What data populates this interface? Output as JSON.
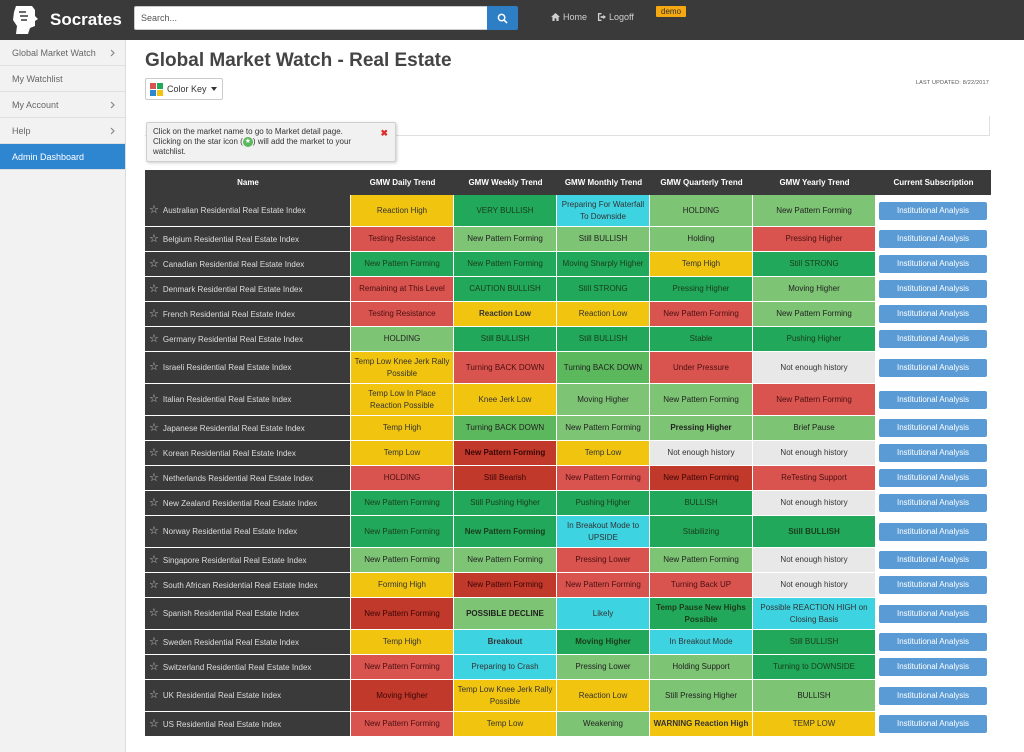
{
  "app": {
    "name": "Socrates"
  },
  "search": {
    "placeholder": "Search..."
  },
  "nav": {
    "home": "Home",
    "logoff": "Logoff",
    "badge": "demo"
  },
  "sidebar": {
    "items": [
      {
        "label": "Global Market Watch",
        "chevron": true
      },
      {
        "label": "My Watchlist",
        "chevron": false
      },
      {
        "label": "My Account",
        "chevron": true
      },
      {
        "label": "Help",
        "chevron": true
      },
      {
        "label": "Admin Dashboard",
        "chevron": false,
        "active": true
      }
    ]
  },
  "page": {
    "title": "Global Market Watch - Real Estate",
    "color_key": "Color Key",
    "last_updated": "LAST UPDATED: 8/22/2017",
    "tip_line1": "Click on the market name to go to Market detail page.",
    "tip_line2a": "Clicking on the star icon (",
    "tip_line2b": ") will add the market to your watchlist."
  },
  "table": {
    "headers": [
      "Name",
      "GMW Daily Trend",
      "GMW Weekly Trend",
      "GMW Monthly Trend",
      "GMW Quarterly Trend",
      "GMW Yearly Trend",
      "Current Subscription"
    ],
    "subscription_label": "Institutional Analysis",
    "rows": [
      {
        "name": "Australian Residential Real Estate Index",
        "cells": [
          [
            "Reaction High",
            "yellow"
          ],
          [
            "VERY BULLISH",
            "dgreen"
          ],
          [
            "Preparing For Waterfall To Downside",
            "cyan"
          ],
          [
            "HOLDING",
            "lgreen"
          ],
          [
            "New Pattern Forming",
            "lgreen"
          ]
        ]
      },
      {
        "name": "Belgium Residential Real Estate Index",
        "cells": [
          [
            "Testing Resistance",
            "red"
          ],
          [
            "New Pattern Forming",
            "lgreen"
          ],
          [
            "Still BULLISH",
            "lgreen"
          ],
          [
            "Holding",
            "lgreen"
          ],
          [
            "Pressing Higher",
            "red"
          ]
        ]
      },
      {
        "name": "Canadian Residential Real Estate Index",
        "cells": [
          [
            "New Pattern Forming",
            "dgreen"
          ],
          [
            "New Pattern Forming",
            "dgreen"
          ],
          [
            "Moving Sharply Higher",
            "dgreen"
          ],
          [
            "Temp High",
            "yellow"
          ],
          [
            "Still STRONG",
            "dgreen"
          ]
        ]
      },
      {
        "name": "Denmark Residential Real Estate Index",
        "cells": [
          [
            "Remaining at This Level",
            "red"
          ],
          [
            "CAUTION BULLISH",
            "dgreen"
          ],
          [
            "Still STRONG",
            "dgreen"
          ],
          [
            "Pressing Higher",
            "dgreen"
          ],
          [
            "Moving Higher",
            "lgreen"
          ]
        ]
      },
      {
        "name": "French Residential Real Estate Index",
        "cells": [
          [
            "Testing Resistance",
            "red"
          ],
          [
            "Reaction Low",
            "yellow",
            "b"
          ],
          [
            "Reaction Low",
            "yellow"
          ],
          [
            "New Pattern Forming",
            "red"
          ],
          [
            "New Pattern Forming",
            "lgreen"
          ]
        ]
      },
      {
        "name": "Germany Residential Real Estate Index",
        "cells": [
          [
            "HOLDING",
            "lgreen"
          ],
          [
            "Still BULLISH",
            "dgreen"
          ],
          [
            "Still BULLISH",
            "dgreen"
          ],
          [
            "Stable",
            "dgreen"
          ],
          [
            "Pushing Higher",
            "dgreen"
          ]
        ]
      },
      {
        "name": "Israeli Residential Real Estate Index",
        "cells": [
          [
            "Temp Low Knee Jerk Rally Possible",
            "yellow"
          ],
          [
            "Turning BACK DOWN",
            "red"
          ],
          [
            "Turning BACK DOWN",
            "mgreen"
          ],
          [
            "Under Pressure",
            "red"
          ],
          [
            "Not enough history",
            "grey"
          ]
        ]
      },
      {
        "name": "Italian Residential Real Estate Index",
        "cells": [
          [
            "Temp Low In Place Reaction Possible",
            "yellow"
          ],
          [
            "Knee Jerk Low",
            "yellow"
          ],
          [
            "Moving Higher",
            "lgreen"
          ],
          [
            "New Pattern Forming",
            "lgreen"
          ],
          [
            "New Pattern Forming",
            "red"
          ]
        ]
      },
      {
        "name": "Japanese Residential Real Estate Index",
        "cells": [
          [
            "Temp High",
            "yellow"
          ],
          [
            "Turning BACK DOWN",
            "mgreen"
          ],
          [
            "New Pattern Forming",
            "lgreen"
          ],
          [
            "Pressing Higher",
            "lgreen",
            "b"
          ],
          [
            "Brief Pause",
            "lgreen"
          ]
        ]
      },
      {
        "name": "Korean Residential Real Estate Index",
        "cells": [
          [
            "Temp Low",
            "yellow"
          ],
          [
            "New Pattern Forming",
            "dred",
            "b"
          ],
          [
            "Temp Low",
            "yellow"
          ],
          [
            "Not enough history",
            "grey"
          ],
          [
            "Not enough history",
            "grey"
          ]
        ]
      },
      {
        "name": "Netherlands Residential Real Estate Index",
        "cells": [
          [
            "HOLDING",
            "red"
          ],
          [
            "Still Bearish",
            "dred"
          ],
          [
            "New Pattern Forming",
            "red"
          ],
          [
            "New Pattern Forming",
            "dred"
          ],
          [
            "ReTesting Support",
            "red"
          ]
        ]
      },
      {
        "name": "New Zealand Residential Real Estate Index",
        "cells": [
          [
            "New Pattern Forming",
            "dgreen"
          ],
          [
            "Still Pushing Higher",
            "dgreen"
          ],
          [
            "Pushing Higher",
            "dgreen"
          ],
          [
            "BULLISH",
            "dgreen"
          ],
          [
            "Not enough history",
            "grey"
          ]
        ]
      },
      {
        "name": "Norway Residential Real Estate Index",
        "cells": [
          [
            "New Pattern Forming",
            "dgreen"
          ],
          [
            "New Pattern Forming",
            "dgreen",
            "b"
          ],
          [
            "In Breakout Mode to UPSIDE",
            "cyan"
          ],
          [
            "Stabilizing",
            "dgreen"
          ],
          [
            "Still BULLISH",
            "dgreen",
            "b"
          ]
        ]
      },
      {
        "name": "Singapore Residential Real Estate Index",
        "cells": [
          [
            "New Pattern Forming",
            "lgreen"
          ],
          [
            "New Pattern Forming",
            "lgreen"
          ],
          [
            "Pressing Lower",
            "red"
          ],
          [
            "New Pattern Forming",
            "lgreen"
          ],
          [
            "Not enough history",
            "grey"
          ]
        ]
      },
      {
        "name": "South African Residential Real Estate Index",
        "cells": [
          [
            "Forming High",
            "yellow"
          ],
          [
            "New Pattern Forming",
            "dred"
          ],
          [
            "New Pattern Forming",
            "red"
          ],
          [
            "Turning Back UP",
            "red"
          ],
          [
            "Not enough history",
            "grey"
          ]
        ]
      },
      {
        "name": "Spanish Residential Real Estate Index",
        "cells": [
          [
            "New Pattern Forming",
            "dred"
          ],
          [
            "POSSIBLE DECLINE",
            "lgreen",
            "b"
          ],
          [
            "Likely",
            "cyan"
          ],
          [
            "Temp Pause New Highs Possible",
            "dgreen",
            "b"
          ],
          [
            "Possible REACTION HIGH on Closing Basis",
            "cyan"
          ]
        ]
      },
      {
        "name": "Sweden Residential Real Estate Index",
        "cells": [
          [
            "Temp High",
            "yellow"
          ],
          [
            "Breakout",
            "cyan",
            "b"
          ],
          [
            "Moving Higher",
            "dgreen",
            "b"
          ],
          [
            "In Breakout Mode",
            "cyan"
          ],
          [
            "Still BULLISH",
            "dgreen"
          ]
        ]
      },
      {
        "name": "Switzerland Residential Real Estate Index",
        "cells": [
          [
            "New Pattern Forming",
            "red"
          ],
          [
            "Preparing to Crash",
            "cyan"
          ],
          [
            "Pressing Lower",
            "lgreen"
          ],
          [
            "Holding Support",
            "lgreen"
          ],
          [
            "Turning to DOWNSIDE",
            "dgreen"
          ]
        ]
      },
      {
        "name": "UK Residential Real Estate Index",
        "cells": [
          [
            "Moving Higher",
            "dred"
          ],
          [
            "Temp Low Knee Jerk Rally Possible",
            "yellow"
          ],
          [
            "Reaction Low",
            "yellow"
          ],
          [
            "Still Pressing Higher",
            "lgreen"
          ],
          [
            "BULLISH",
            "lgreen"
          ]
        ]
      },
      {
        "name": "US Residential Real Estate Index",
        "cells": [
          [
            "New Pattern Forming",
            "red"
          ],
          [
            "Temp Low",
            "yellow"
          ],
          [
            "Weakening",
            "lgreen"
          ],
          [
            "WARNING Reaction High",
            "yellow",
            "b"
          ],
          [
            "TEMP LOW",
            "yellow"
          ]
        ]
      }
    ]
  },
  "colors": {
    "yellow": "#f1c40f",
    "dgreen": "#21a85a",
    "lgreen": "#7dc474",
    "mgreen": "#5cb85c",
    "cyan": "#3ed3e0",
    "red": "#d9534f",
    "dred": "#c0392b",
    "grey": "#e8e8e8",
    "accent": "#2e86d1",
    "topbar": "#3a3a3a"
  }
}
